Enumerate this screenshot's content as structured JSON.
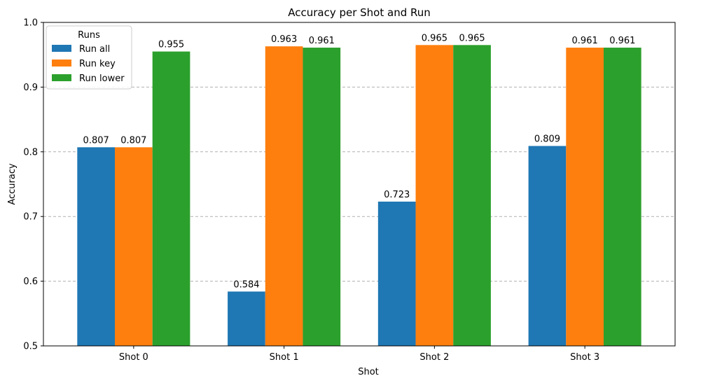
{
  "chart_data": {
    "type": "bar",
    "title": "Accuracy per Shot and Run",
    "xlabel": "Shot",
    "ylabel": "Accuracy",
    "categories": [
      "Shot 0",
      "Shot 1",
      "Shot 2",
      "Shot 3"
    ],
    "ylim": [
      0.5,
      1.0
    ],
    "yticks": [
      "0.5",
      "0.6",
      "0.7",
      "0.8",
      "0.9",
      "1.0"
    ],
    "grid": "horizontal dashed",
    "legend": {
      "title": "Runs",
      "placement": "top-left"
    },
    "series": [
      {
        "name": "Run all",
        "color": "#1f77b4",
        "values": [
          0.807,
          0.584,
          0.723,
          0.809
        ]
      },
      {
        "name": "Run key",
        "color": "#ff7f0e",
        "values": [
          0.807,
          0.963,
          0.965,
          0.961
        ]
      },
      {
        "name": "Run lower",
        "color": "#2ca02c",
        "values": [
          0.955,
          0.961,
          0.965,
          0.961
        ]
      }
    ]
  }
}
